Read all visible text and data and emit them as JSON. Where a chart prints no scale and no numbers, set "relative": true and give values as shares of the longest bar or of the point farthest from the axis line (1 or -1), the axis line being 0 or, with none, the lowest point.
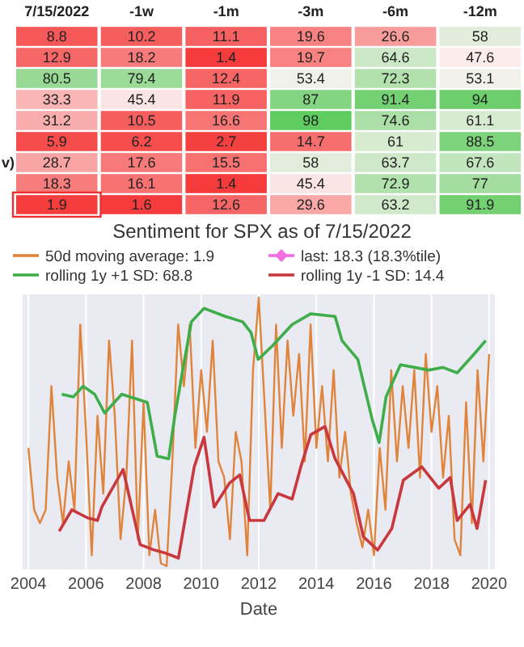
{
  "chart_data": [
    {
      "type": "heatmap",
      "categories": [
        "7/15/2022",
        "-1w",
        "-1m",
        "-3m",
        "-6m",
        "-12m"
      ],
      "y_categories": [
        null,
        null,
        null,
        null,
        null,
        null,
        null,
        null,
        null
      ],
      "annotations": [
        "v)"
      ],
      "data_labels": true,
      "cells": [
        [
          8.8,
          10.2,
          11.1,
          19.6,
          26.6,
          58
        ],
        [
          12.9,
          18.2,
          1.4,
          19.7,
          64.6,
          47.6
        ],
        [
          80.5,
          79.4,
          12.4,
          53.4,
          72.3,
          53.1
        ],
        [
          33.3,
          45.4,
          11.9,
          87,
          91.4,
          94
        ],
        [
          31.2,
          10.5,
          16.6,
          98,
          74.6,
          61.1
        ],
        [
          5.9,
          6.2,
          2.7,
          14.7,
          61,
          88.5
        ],
        [
          28.7,
          17.6,
          15.5,
          58,
          63.7,
          67.6
        ],
        [
          18.3,
          16.1,
          1.4,
          45.4,
          72.9,
          77
        ],
        [
          1.9,
          1.6,
          12.6,
          29.6,
          63.2,
          91.9
        ]
      ]
    },
    {
      "type": "line",
      "title": "Sentiment for SPX as of 7/15/2022",
      "xlabel": "Date",
      "relative": true,
      "xlim": [
        2003.8,
        2020.2
      ],
      "xticks": [
        2004,
        2006,
        2008,
        2010,
        2012,
        2014,
        2016,
        2018,
        2020
      ],
      "grid": "x",
      "legend": "top",
      "marker": "none",
      "line_style": "solid",
      "series": [
        {
          "name": "50d moving average: 1.9",
          "color": "#e0843c",
          "x": [
            2004.0,
            2004.2,
            2004.4,
            2004.6,
            2004.8,
            2005.0,
            2005.2,
            2005.4,
            2005.6,
            2005.8,
            2006.0,
            2006.2,
            2006.4,
            2006.6,
            2006.8,
            2007.0,
            2007.2,
            2007.4,
            2007.6,
            2007.8,
            2008.0,
            2008.2,
            2008.4,
            2008.6,
            2008.8,
            2009.0,
            2009.2,
            2009.4,
            2009.6,
            2009.8,
            2010.0,
            2010.2,
            2010.4,
            2010.6,
            2010.8,
            2011.0,
            2011.2,
            2011.4,
            2011.6,
            2011.8,
            2012.0,
            2012.2,
            2012.4,
            2012.6,
            2012.8,
            2013.0,
            2013.2,
            2013.4,
            2013.6,
            2013.8,
            2014.0,
            2014.2,
            2014.4,
            2014.6,
            2014.8,
            2015.0,
            2015.2,
            2015.4,
            2015.6,
            2015.8,
            2016.0,
            2016.2,
            2016.4,
            2016.6,
            2016.8,
            2017.0,
            2017.2,
            2017.4,
            2017.6,
            2017.8,
            2018.0,
            2018.2,
            2018.4,
            2018.6,
            2018.8,
            2019.0,
            2019.2,
            2019.4,
            2019.6,
            2019.8,
            2020.0
          ],
          "values": [
            0.44,
            0.21,
            0.16,
            0.21,
            0.67,
            0.33,
            0.16,
            0.39,
            0.21,
            0.9,
            0.5,
            0.04,
            0.56,
            0.27,
            0.84,
            0.56,
            0.1,
            0.33,
            0.84,
            0.1,
            0.61,
            0.04,
            0.21,
            0.01,
            0,
            0.39,
            0.9,
            0.67,
            0.9,
            0.44,
            0.73,
            0.5,
            0.84,
            0.39,
            0.33,
            0.1,
            0.5,
            0.39,
            0.04,
            0.73,
            1.0,
            0.61,
            0.21,
            0.9,
            0.44,
            0.84,
            0.56,
            0.79,
            0.39,
            0.9,
            0.44,
            0.67,
            0.39,
            0.73,
            0.33,
            0.5,
            0.27,
            0.16,
            0.07,
            0.21,
            0.04,
            0.44,
            0.21,
            0.73,
            0.39,
            0.67,
            0.44,
            0.73,
            0.33,
            0.79,
            0.5,
            0.67,
            0.33,
            0.56,
            0.1,
            0.04,
            0.61,
            0.16,
            0.73,
            0.39,
            0.79
          ]
        },
        {
          "name": "last: 18.3 (18.3%tile)",
          "color": "#f06ee0",
          "marker": "diamond"
        },
        {
          "name": "rolling 1y +1 SD: 68.8",
          "color": "#3fae4a",
          "x": [
            2005.16,
            2005.56,
            2005.9,
            2006.3,
            2006.65,
            2007.24,
            2008.13,
            2008.47,
            2008.87,
            2009.07,
            2009.36,
            2009.66,
            2010.1,
            2010.84,
            2011.44,
            2011.73,
            2011.98,
            2012.47,
            2013.16,
            2013.81,
            2014.65,
            2014.89,
            2015.44,
            2015.93,
            2016.18,
            2016.42,
            2016.92,
            2017.9,
            2018.4,
            2018.89,
            2019.48,
            2019.88
          ],
          "values": [
            0.64,
            0.63,
            0.67,
            0.64,
            0.57,
            0.64,
            0.61,
            0.41,
            0.4,
            0.55,
            0.73,
            0.91,
            0.96,
            0.93,
            0.91,
            0.87,
            0.77,
            0.82,
            0.9,
            0.94,
            0.93,
            0.84,
            0.77,
            0.55,
            0.46,
            0.63,
            0.75,
            0.73,
            0.74,
            0.72,
            0.79,
            0.84
          ]
        },
        {
          "name": "rolling 1y -1 SD: 14.4",
          "color": "#c8383c",
          "x": [
            2005.07,
            2005.51,
            2006.05,
            2006.4,
            2006.55,
            2007.29,
            2007.88,
            2008.37,
            2008.72,
            2009.21,
            2009.76,
            2010.1,
            2010.45,
            2010.99,
            2011.34,
            2011.68,
            2012.18,
            2012.67,
            2013.16,
            2013.46,
            2013.81,
            2014.3,
            2014.65,
            2015.29,
            2015.63,
            2016.13,
            2016.62,
            2017.02,
            2017.66,
            2018.25,
            2018.65,
            2018.89,
            2019.34,
            2019.58,
            2019.88
          ],
          "values": [
            0.13,
            0.21,
            0.18,
            0.17,
            0.22,
            0.36,
            0.08,
            0.06,
            0.05,
            0.03,
            0.37,
            0.48,
            0.22,
            0.31,
            0.34,
            0.17,
            0.17,
            0.27,
            0.25,
            0.37,
            0.49,
            0.52,
            0.4,
            0.27,
            0.11,
            0.06,
            0.14,
            0.32,
            0.37,
            0.29,
            0.33,
            0.17,
            0.23,
            0.14,
            0.32
          ]
        }
      ]
    }
  ]
}
